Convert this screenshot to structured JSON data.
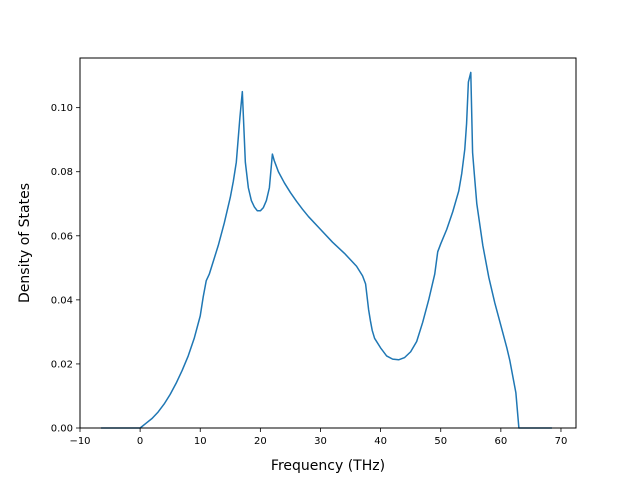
{
  "chart_data": {
    "type": "line",
    "xlabel": "Frequency (THz)",
    "ylabel": "Density of States",
    "xlim": [
      -10,
      72.5
    ],
    "ylim": [
      0,
      0.1155
    ],
    "grid": false,
    "xticks": [
      -10,
      0,
      10,
      20,
      30,
      40,
      50,
      60,
      70
    ],
    "xtick_labels": [
      "−10",
      "0",
      "10",
      "20",
      "30",
      "40",
      "50",
      "60",
      "70"
    ],
    "yticks": [
      0.0,
      0.02,
      0.04,
      0.06,
      0.08,
      0.1
    ],
    "ytick_labels": [
      "0.00",
      "0.02",
      "0.04",
      "0.06",
      "0.08",
      "0.10"
    ],
    "series": [
      {
        "color": "#1f77b4",
        "x": [
          -6.5,
          -3,
          0,
          1,
          2,
          3,
          4,
          5,
          6,
          7,
          8,
          9,
          10,
          10.5,
          11,
          11.5,
          12,
          13,
          14,
          15,
          15.5,
          16,
          16.3,
          16.6,
          17,
          17.5,
          18,
          18.5,
          19,
          19.5,
          20,
          20.5,
          21,
          21.5,
          22,
          22.3,
          22.6,
          23,
          24,
          25,
          26,
          27,
          28,
          30,
          32,
          34,
          36,
          37,
          37.5,
          38,
          38.3,
          38.6,
          39,
          40,
          41,
          42,
          43,
          44,
          45,
          46,
          47,
          48,
          49,
          49.5,
          50,
          51,
          52,
          53,
          53.5,
          54,
          54.3,
          54.6,
          55,
          55.3,
          55.6,
          56,
          57,
          58,
          59,
          60,
          61,
          61.5,
          62,
          62.5,
          63,
          65,
          68.5
        ],
        "y": [
          0.0,
          0.0,
          0.0,
          0.0015,
          0.003,
          0.005,
          0.0075,
          0.0105,
          0.014,
          0.018,
          0.0225,
          0.028,
          0.035,
          0.041,
          0.046,
          0.048,
          0.051,
          0.057,
          0.064,
          0.072,
          0.077,
          0.083,
          0.09,
          0.097,
          0.105,
          0.083,
          0.075,
          0.071,
          0.069,
          0.0678,
          0.0678,
          0.0688,
          0.071,
          0.075,
          0.0855,
          0.0835,
          0.082,
          0.08,
          0.0765,
          0.0735,
          0.0708,
          0.0683,
          0.066,
          0.062,
          0.058,
          0.0545,
          0.0505,
          0.0475,
          0.045,
          0.037,
          0.0335,
          0.0305,
          0.028,
          0.025,
          0.0225,
          0.0215,
          0.0213,
          0.022,
          0.0238,
          0.027,
          0.033,
          0.04,
          0.048,
          0.055,
          0.0575,
          0.062,
          0.0675,
          0.074,
          0.0795,
          0.087,
          0.095,
          0.108,
          0.111,
          0.086,
          0.079,
          0.07,
          0.057,
          0.047,
          0.039,
          0.032,
          0.025,
          0.021,
          0.016,
          0.011,
          0.0,
          0.0,
          0.0
        ]
      }
    ]
  }
}
